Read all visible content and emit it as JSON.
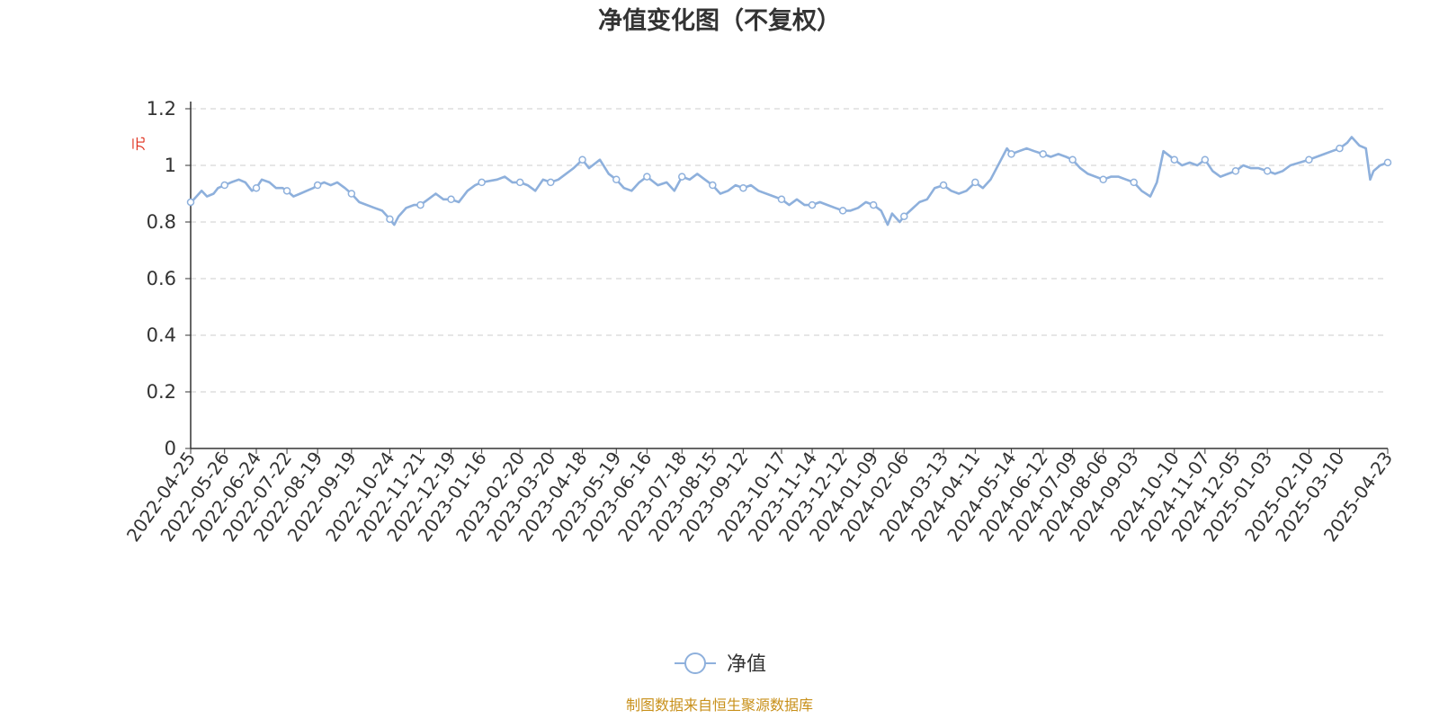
{
  "chart_data": {
    "type": "line",
    "title": "净值变化图（不复权）",
    "y_unit": "元",
    "ylim": [
      0,
      1.2
    ],
    "y_ticks": [
      "0",
      "0.2",
      "0.4",
      "0.6",
      "0.8",
      "1",
      "1.2"
    ],
    "x_tick_labels": [
      "2022-04-25",
      "2022-05-26",
      "2022-06-24",
      "2022-07-22",
      "2022-08-19",
      "2022-09-19",
      "2022-10-24",
      "2022-11-21",
      "2022-12-19",
      "2023-01-16",
      "2023-02-20",
      "2023-03-20",
      "2023-04-18",
      "2023-05-19",
      "2023-06-16",
      "2023-07-18",
      "2023-08-15",
      "2023-09-12",
      "2023-10-17",
      "2023-11-14",
      "2023-12-12",
      "2024-01-09",
      "2024-02-06",
      "2024-03-13",
      "2024-04-11",
      "2024-05-14",
      "2024-06-12",
      "2024-07-09",
      "2024-08-06",
      "2024-09-03",
      "2024-10-10",
      "2024-11-07",
      "2024-12-05",
      "2025-01-03",
      "2025-02-10",
      "2025-03-10",
      "2025-04-23"
    ],
    "grid": true,
    "grid_style": "dashed-horizontal",
    "legend_position": "bottom-center",
    "series": [
      {
        "name": "净值",
        "color": "#8eb0dc",
        "points": [
          [
            "2022-04-25",
            0.87
          ],
          [
            "2022-04-28",
            0.88
          ],
          [
            "2022-05-05",
            0.91
          ],
          [
            "2022-05-10",
            0.89
          ],
          [
            "2022-05-16",
            0.9
          ],
          [
            "2022-05-20",
            0.92
          ],
          [
            "2022-05-26",
            0.93
          ],
          [
            "2022-06-01",
            0.94
          ],
          [
            "2022-06-08",
            0.95
          ],
          [
            "2022-06-14",
            0.94
          ],
          [
            "2022-06-20",
            0.91
          ],
          [
            "2022-06-24",
            0.92
          ],
          [
            "2022-06-29",
            0.95
          ],
          [
            "2022-07-06",
            0.94
          ],
          [
            "2022-07-12",
            0.92
          ],
          [
            "2022-07-18",
            0.92
          ],
          [
            "2022-07-22",
            0.91
          ],
          [
            "2022-07-28",
            0.89
          ],
          [
            "2022-08-03",
            0.9
          ],
          [
            "2022-08-09",
            0.91
          ],
          [
            "2022-08-15",
            0.92
          ],
          [
            "2022-08-19",
            0.93
          ],
          [
            "2022-08-25",
            0.94
          ],
          [
            "2022-08-31",
            0.93
          ],
          [
            "2022-09-06",
            0.94
          ],
          [
            "2022-09-13",
            0.92
          ],
          [
            "2022-09-19",
            0.9
          ],
          [
            "2022-09-26",
            0.87
          ],
          [
            "2022-10-10",
            0.85
          ],
          [
            "2022-10-17",
            0.84
          ],
          [
            "2022-10-24",
            0.81
          ],
          [
            "2022-10-28",
            0.79
          ],
          [
            "2022-11-01",
            0.82
          ],
          [
            "2022-11-08",
            0.85
          ],
          [
            "2022-11-15",
            0.86
          ],
          [
            "2022-11-21",
            0.86
          ],
          [
            "2022-11-28",
            0.88
          ],
          [
            "2022-12-05",
            0.9
          ],
          [
            "2022-12-12",
            0.88
          ],
          [
            "2022-12-19",
            0.88
          ],
          [
            "2022-12-26",
            0.87
          ],
          [
            "2023-01-03",
            0.91
          ],
          [
            "2023-01-10",
            0.93
          ],
          [
            "2023-01-16",
            0.94
          ],
          [
            "2023-01-30",
            0.95
          ],
          [
            "2023-02-06",
            0.96
          ],
          [
            "2023-02-13",
            0.94
          ],
          [
            "2023-02-20",
            0.94
          ],
          [
            "2023-02-27",
            0.93
          ],
          [
            "2023-03-06",
            0.91
          ],
          [
            "2023-03-13",
            0.95
          ],
          [
            "2023-03-20",
            0.94
          ],
          [
            "2023-03-27",
            0.95
          ],
          [
            "2023-04-03",
            0.97
          ],
          [
            "2023-04-10",
            0.99
          ],
          [
            "2023-04-18",
            1.02
          ],
          [
            "2023-04-24",
            0.99
          ],
          [
            "2023-05-04",
            1.02
          ],
          [
            "2023-05-12",
            0.97
          ],
          [
            "2023-05-19",
            0.95
          ],
          [
            "2023-05-26",
            0.92
          ],
          [
            "2023-06-02",
            0.91
          ],
          [
            "2023-06-09",
            0.94
          ],
          [
            "2023-06-16",
            0.96
          ],
          [
            "2023-06-26",
            0.93
          ],
          [
            "2023-07-04",
            0.94
          ],
          [
            "2023-07-11",
            0.91
          ],
          [
            "2023-07-18",
            0.96
          ],
          [
            "2023-07-25",
            0.95
          ],
          [
            "2023-08-01",
            0.97
          ],
          [
            "2023-08-08",
            0.95
          ],
          [
            "2023-08-15",
            0.93
          ],
          [
            "2023-08-22",
            0.9
          ],
          [
            "2023-08-29",
            0.91
          ],
          [
            "2023-09-05",
            0.93
          ],
          [
            "2023-09-12",
            0.92
          ],
          [
            "2023-09-19",
            0.93
          ],
          [
            "2023-09-26",
            0.91
          ],
          [
            "2023-10-10",
            0.89
          ],
          [
            "2023-10-17",
            0.88
          ],
          [
            "2023-10-24",
            0.86
          ],
          [
            "2023-10-31",
            0.88
          ],
          [
            "2023-11-07",
            0.86
          ],
          [
            "2023-11-14",
            0.86
          ],
          [
            "2023-11-21",
            0.87
          ],
          [
            "2023-11-28",
            0.86
          ],
          [
            "2023-12-05",
            0.85
          ],
          [
            "2023-12-12",
            0.84
          ],
          [
            "2023-12-19",
            0.84
          ],
          [
            "2023-12-26",
            0.85
          ],
          [
            "2024-01-02",
            0.87
          ],
          [
            "2024-01-09",
            0.86
          ],
          [
            "2024-01-16",
            0.84
          ],
          [
            "2024-01-22",
            0.79
          ],
          [
            "2024-01-26",
            0.83
          ],
          [
            "2024-02-02",
            0.8
          ],
          [
            "2024-02-06",
            0.82
          ],
          [
            "2024-02-20",
            0.87
          ],
          [
            "2024-02-27",
            0.88
          ],
          [
            "2024-03-05",
            0.92
          ],
          [
            "2024-03-13",
            0.93
          ],
          [
            "2024-03-20",
            0.91
          ],
          [
            "2024-03-27",
            0.9
          ],
          [
            "2024-04-03",
            0.91
          ],
          [
            "2024-04-11",
            0.94
          ],
          [
            "2024-04-18",
            0.92
          ],
          [
            "2024-04-25",
            0.95
          ],
          [
            "2024-05-06",
            1.03
          ],
          [
            "2024-05-10",
            1.06
          ],
          [
            "2024-05-14",
            1.04
          ],
          [
            "2024-05-21",
            1.05
          ],
          [
            "2024-05-28",
            1.06
          ],
          [
            "2024-06-04",
            1.05
          ],
          [
            "2024-06-12",
            1.04
          ],
          [
            "2024-06-19",
            1.03
          ],
          [
            "2024-06-26",
            1.04
          ],
          [
            "2024-07-03",
            1.03
          ],
          [
            "2024-07-09",
            1.02
          ],
          [
            "2024-07-16",
            0.99
          ],
          [
            "2024-07-23",
            0.97
          ],
          [
            "2024-07-30",
            0.96
          ],
          [
            "2024-08-06",
            0.95
          ],
          [
            "2024-08-13",
            0.96
          ],
          [
            "2024-08-20",
            0.96
          ],
          [
            "2024-08-27",
            0.95
          ],
          [
            "2024-09-03",
            0.94
          ],
          [
            "2024-09-10",
            0.91
          ],
          [
            "2024-09-18",
            0.89
          ],
          [
            "2024-09-24",
            0.94
          ],
          [
            "2024-09-30",
            1.05
          ],
          [
            "2024-10-10",
            1.02
          ],
          [
            "2024-10-17",
            1.0
          ],
          [
            "2024-10-24",
            1.01
          ],
          [
            "2024-10-31",
            1.0
          ],
          [
            "2024-11-07",
            1.02
          ],
          [
            "2024-11-14",
            0.98
          ],
          [
            "2024-11-21",
            0.96
          ],
          [
            "2024-11-28",
            0.97
          ],
          [
            "2024-12-05",
            0.98
          ],
          [
            "2024-12-12",
            1.0
          ],
          [
            "2024-12-19",
            0.99
          ],
          [
            "2024-12-26",
            0.99
          ],
          [
            "2025-01-03",
            0.98
          ],
          [
            "2025-01-10",
            0.97
          ],
          [
            "2025-01-17",
            0.98
          ],
          [
            "2025-01-24",
            1.0
          ],
          [
            "2025-02-10",
            1.02
          ],
          [
            "2025-02-17",
            1.03
          ],
          [
            "2025-02-24",
            1.04
          ],
          [
            "2025-03-03",
            1.05
          ],
          [
            "2025-03-10",
            1.06
          ],
          [
            "2025-03-17",
            1.08
          ],
          [
            "2025-03-21",
            1.1
          ],
          [
            "2025-03-28",
            1.07
          ],
          [
            "2025-04-03",
            1.06
          ],
          [
            "2025-04-07",
            0.95
          ],
          [
            "2025-04-10",
            0.98
          ],
          [
            "2025-04-16",
            1.0
          ],
          [
            "2025-04-23",
            1.01
          ]
        ]
      }
    ]
  },
  "footer": {
    "source": "制图数据来自恒生聚源数据库"
  }
}
